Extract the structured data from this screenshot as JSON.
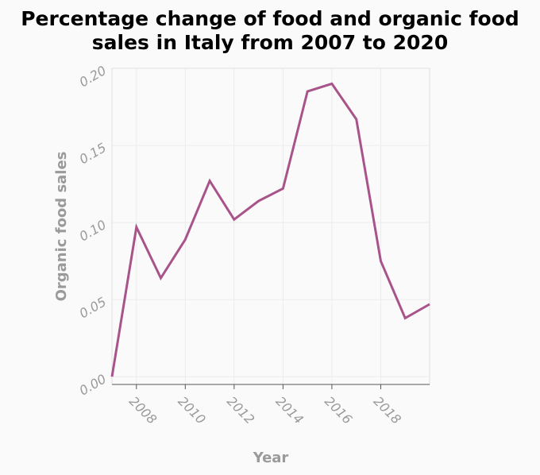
{
  "chart_data": {
    "type": "line",
    "title": "Percentage change of food and organic food sales in Italy from 2007 to 2020",
    "title_lines": [
      "Percentage change of food and organic food",
      "sales in Italy from 2007 to 2020"
    ],
    "xlabel": "Year",
    "ylabel": "Organic food sales",
    "xlim": [
      2007,
      2020
    ],
    "ylim": [
      -0.005,
      0.2
    ],
    "x_ticks": [
      2008,
      2010,
      2012,
      2014,
      2016,
      2018
    ],
    "y_ticks": [
      "0.00",
      "0.05",
      "0.10",
      "0.15",
      "0.20"
    ],
    "grid": true,
    "series": [
      {
        "color": "#a8538a",
        "x": [
          2007,
          2008,
          2009,
          2010,
          2011,
          2012,
          2013,
          2014,
          2015,
          2016,
          2017,
          2018,
          2019,
          2020
        ],
        "y": [
          0.0,
          0.097,
          0.064,
          0.089,
          0.127,
          0.102,
          0.114,
          0.122,
          0.185,
          0.19,
          0.167,
          0.075,
          0.038,
          0.047
        ]
      }
    ]
  }
}
